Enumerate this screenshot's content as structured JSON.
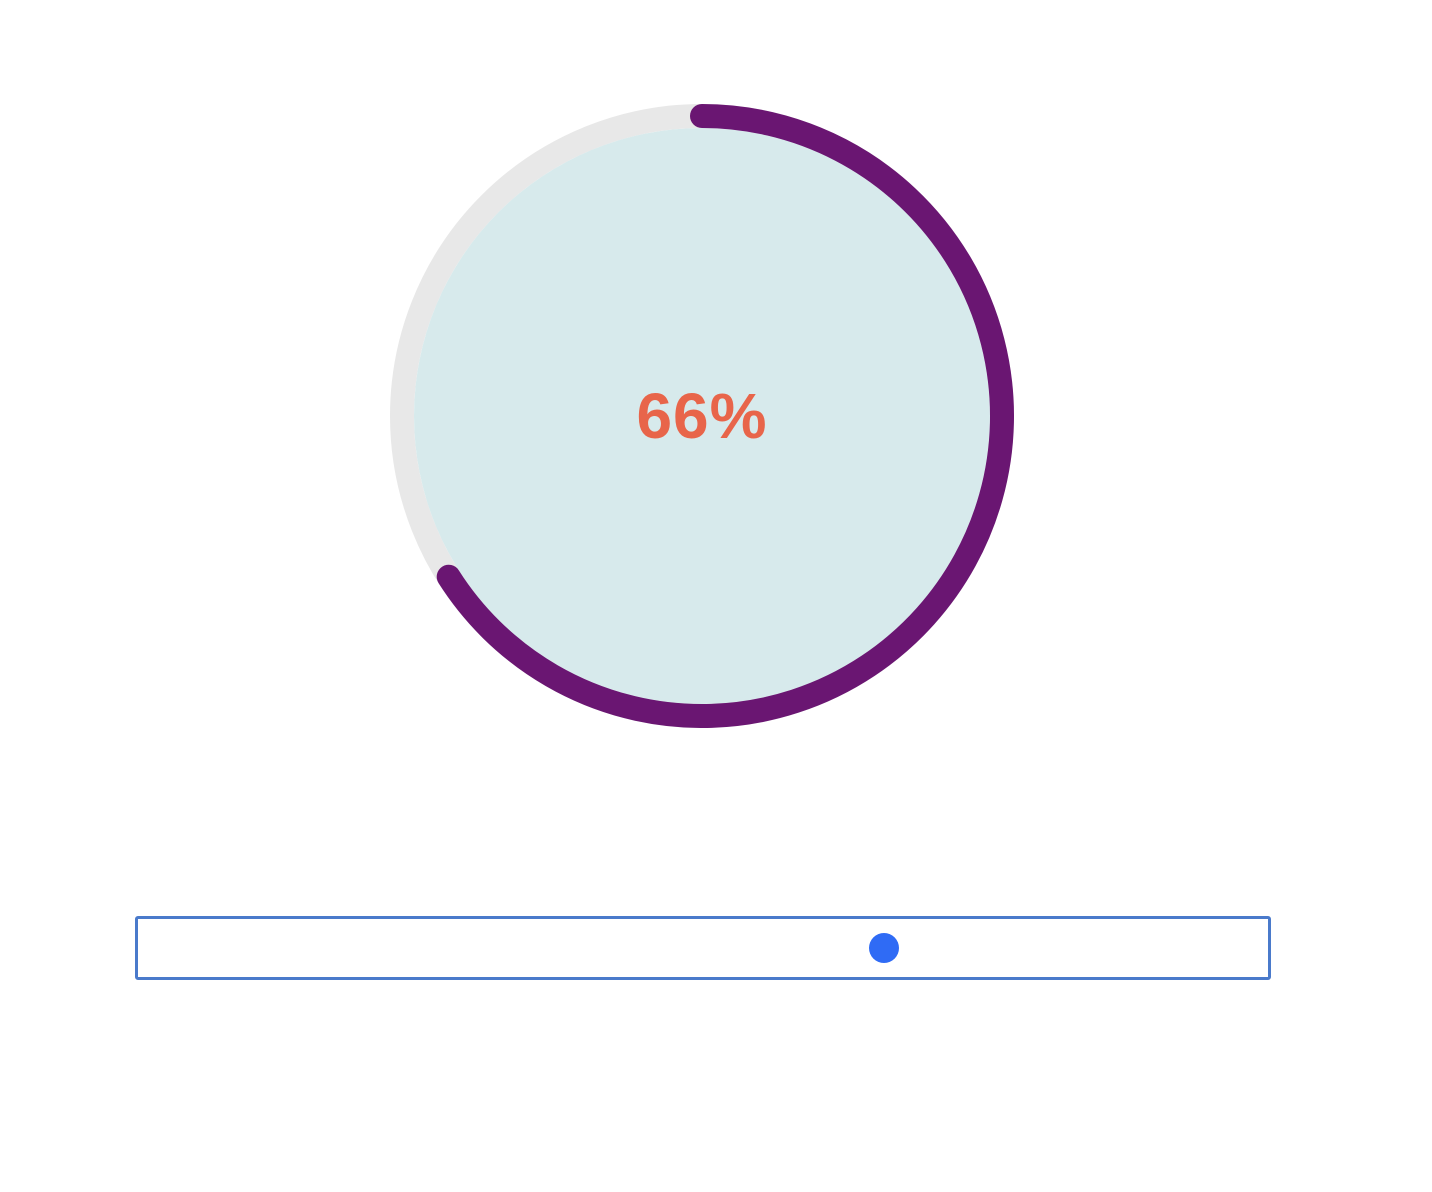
{
  "progress": {
    "value": 0.66,
    "label": "66%",
    "colors": {
      "track": "#e8e8e8",
      "fill": "#d7eaec",
      "arc": "#6a1672",
      "text": "#e8654a"
    }
  },
  "slider": {
    "value": 0.66,
    "colors": {
      "border": "#4a7acb",
      "thumb": "#2f6bf5"
    },
    "icon": "slider-thumb"
  }
}
